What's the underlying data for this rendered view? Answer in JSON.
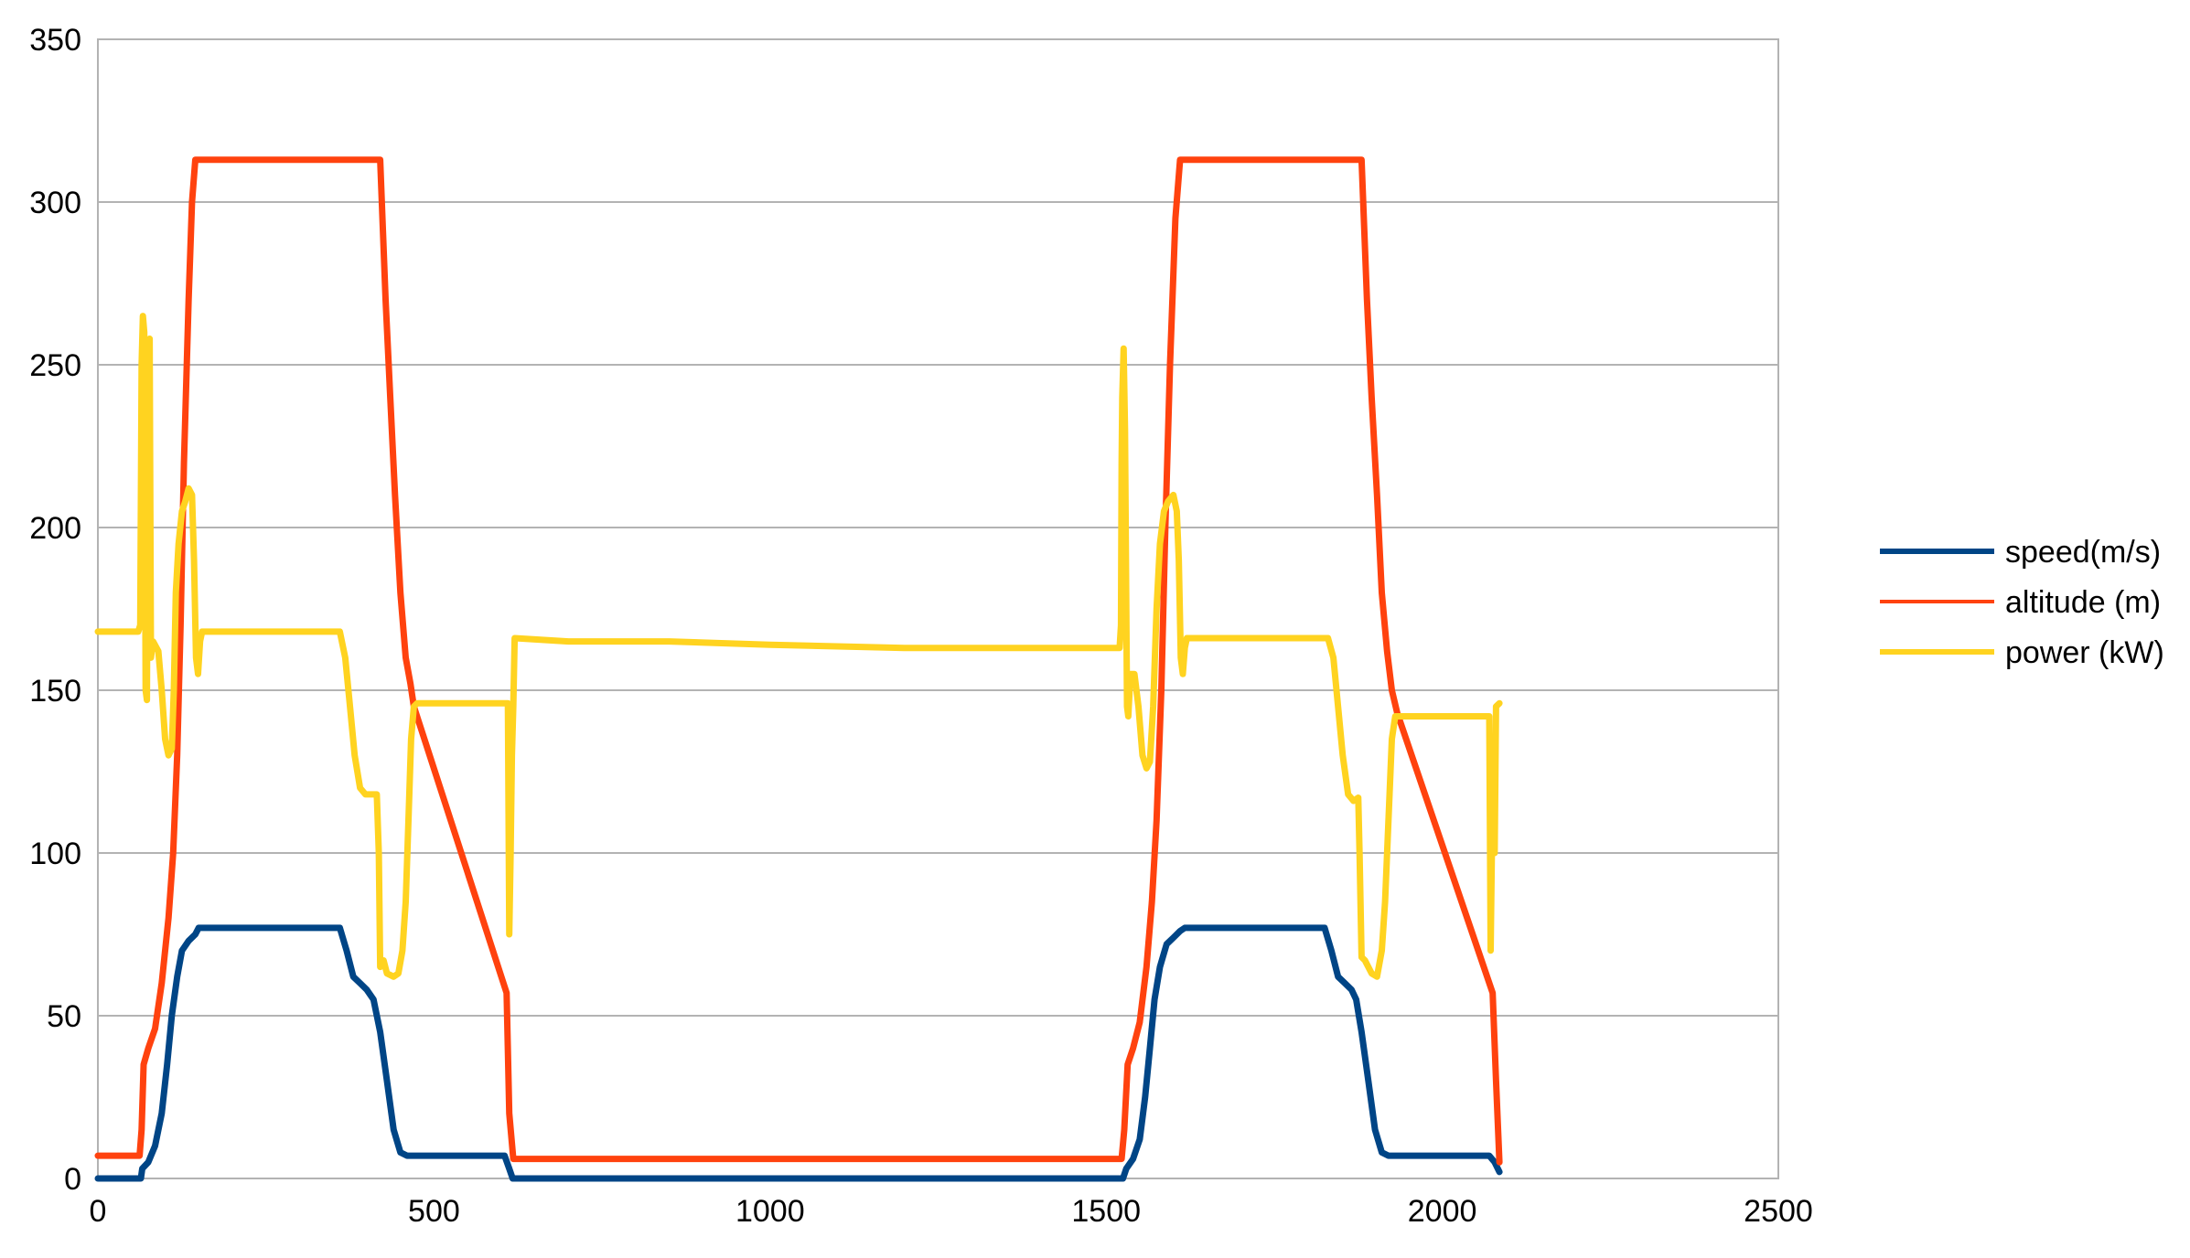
{
  "chart_data": {
    "type": "line",
    "xlim": [
      0,
      2500
    ],
    "ylim": [
      0,
      350
    ],
    "x_ticks": [
      "0",
      "500",
      "1000",
      "1500",
      "2000",
      "2500"
    ],
    "y_ticks": [
      "0",
      "50",
      "100",
      "150",
      "200",
      "250",
      "300",
      "350"
    ],
    "grid": true,
    "legend_position": "right",
    "series": [
      {
        "name": "speed(m/s)",
        "color": "#004586",
        "points": [
          [
            0,
            0
          ],
          [
            64,
            0
          ],
          [
            66,
            3
          ],
          [
            75,
            5
          ],
          [
            85,
            10
          ],
          [
            95,
            20
          ],
          [
            103,
            35
          ],
          [
            110,
            50
          ],
          [
            118,
            62
          ],
          [
            125,
            70
          ],
          [
            135,
            73
          ],
          [
            145,
            75
          ],
          [
            150,
            77
          ],
          [
            360,
            77
          ],
          [
            370,
            70
          ],
          [
            380,
            62
          ],
          [
            390,
            60
          ],
          [
            400,
            58
          ],
          [
            410,
            55
          ],
          [
            420,
            45
          ],
          [
            430,
            30
          ],
          [
            440,
            15
          ],
          [
            450,
            8
          ],
          [
            460,
            7
          ],
          [
            605,
            7
          ],
          [
            612,
            3
          ],
          [
            617,
            0
          ],
          [
            1525,
            0
          ],
          [
            1530,
            3
          ],
          [
            1540,
            6
          ],
          [
            1550,
            12
          ],
          [
            1558,
            25
          ],
          [
            1565,
            40
          ],
          [
            1572,
            55
          ],
          [
            1580,
            65
          ],
          [
            1590,
            72
          ],
          [
            1600,
            74
          ],
          [
            1610,
            76
          ],
          [
            1617,
            77
          ],
          [
            1825,
            77
          ],
          [
            1835,
            70
          ],
          [
            1845,
            62
          ],
          [
            1855,
            60
          ],
          [
            1865,
            58
          ],
          [
            1872,
            55
          ],
          [
            1880,
            45
          ],
          [
            1890,
            30
          ],
          [
            1900,
            15
          ],
          [
            1910,
            8
          ],
          [
            1920,
            7
          ],
          [
            2070,
            7
          ],
          [
            2078,
            5
          ],
          [
            2085,
            2
          ]
        ]
      },
      {
        "name": "altitude (m)",
        "color": "#ff420e",
        "points": [
          [
            0,
            7
          ],
          [
            62,
            7
          ],
          [
            65,
            15
          ],
          [
            68,
            35
          ],
          [
            75,
            40
          ],
          [
            85,
            46
          ],
          [
            95,
            60
          ],
          [
            105,
            80
          ],
          [
            112,
            100
          ],
          [
            118,
            130
          ],
          [
            123,
            170
          ],
          [
            128,
            220
          ],
          [
            135,
            270
          ],
          [
            140,
            300
          ],
          [
            145,
            313
          ],
          [
            420,
            313
          ],
          [
            428,
            270
          ],
          [
            435,
            240
          ],
          [
            442,
            210
          ],
          [
            450,
            180
          ],
          [
            458,
            160
          ],
          [
            465,
            152
          ],
          [
            470,
            145
          ],
          [
            608,
            57
          ],
          [
            612,
            20
          ],
          [
            618,
            6
          ],
          [
            1523,
            6
          ],
          [
            1527,
            15
          ],
          [
            1532,
            35
          ],
          [
            1540,
            40
          ],
          [
            1550,
            48
          ],
          [
            1560,
            65
          ],
          [
            1568,
            85
          ],
          [
            1575,
            110
          ],
          [
            1582,
            150
          ],
          [
            1588,
            200
          ],
          [
            1595,
            250
          ],
          [
            1603,
            295
          ],
          [
            1610,
            313
          ],
          [
            1880,
            313
          ],
          [
            1888,
            270
          ],
          [
            1895,
            240
          ],
          [
            1903,
            210
          ],
          [
            1910,
            180
          ],
          [
            1918,
            162
          ],
          [
            1925,
            150
          ],
          [
            1933,
            143
          ],
          [
            2075,
            57
          ],
          [
            2080,
            30
          ],
          [
            2085,
            5
          ]
        ]
      },
      {
        "name": "power (kW)",
        "color": "#ffd320",
        "points": [
          [
            0,
            168
          ],
          [
            60,
            168
          ],
          [
            63,
            170
          ],
          [
            65,
            250
          ],
          [
            67,
            265
          ],
          [
            69,
            260
          ],
          [
            71,
            150
          ],
          [
            73,
            147
          ],
          [
            75,
            255
          ],
          [
            77,
            258
          ],
          [
            79,
            160
          ],
          [
            82,
            165
          ],
          [
            90,
            162
          ],
          [
            95,
            150
          ],
          [
            100,
            135
          ],
          [
            105,
            130
          ],
          [
            110,
            132
          ],
          [
            113,
            150
          ],
          [
            116,
            180
          ],
          [
            120,
            195
          ],
          [
            125,
            205
          ],
          [
            130,
            208
          ],
          [
            135,
            212
          ],
          [
            140,
            210
          ],
          [
            143,
            190
          ],
          [
            146,
            160
          ],
          [
            149,
            155
          ],
          [
            152,
            165
          ],
          [
            155,
            168
          ],
          [
            360,
            168
          ],
          [
            368,
            160
          ],
          [
            375,
            145
          ],
          [
            382,
            130
          ],
          [
            390,
            120
          ],
          [
            398,
            118
          ],
          [
            415,
            118
          ],
          [
            418,
            100
          ],
          [
            420,
            65
          ],
          [
            425,
            67
          ],
          [
            430,
            63
          ],
          [
            440,
            62
          ],
          [
            447,
            63
          ],
          [
            453,
            70
          ],
          [
            458,
            85
          ],
          [
            462,
            110
          ],
          [
            466,
            135
          ],
          [
            470,
            145
          ],
          [
            475,
            146
          ],
          [
            610,
            146
          ],
          [
            612,
            75
          ],
          [
            614,
            100
          ],
          [
            616,
            130
          ],
          [
            618,
            145
          ],
          [
            620,
            166
          ],
          [
            700,
            165
          ],
          [
            850,
            165
          ],
          [
            1000,
            164
          ],
          [
            1200,
            163
          ],
          [
            1400,
            163
          ],
          [
            1520,
            163
          ],
          [
            1522,
            170
          ],
          [
            1523,
            220
          ],
          [
            1524,
            240
          ],
          [
            1526,
            255
          ],
          [
            1528,
            230
          ],
          [
            1531,
            145
          ],
          [
            1533,
            142
          ],
          [
            1536,
            155
          ],
          [
            1542,
            155
          ],
          [
            1548,
            145
          ],
          [
            1554,
            130
          ],
          [
            1560,
            126
          ],
          [
            1565,
            128
          ],
          [
            1570,
            145
          ],
          [
            1575,
            175
          ],
          [
            1580,
            195
          ],
          [
            1586,
            205
          ],
          [
            1592,
            208
          ],
          [
            1600,
            210
          ],
          [
            1605,
            205
          ],
          [
            1608,
            190
          ],
          [
            1611,
            160
          ],
          [
            1614,
            155
          ],
          [
            1617,
            163
          ],
          [
            1620,
            166
          ],
          [
            1830,
            166
          ],
          [
            1838,
            160
          ],
          [
            1845,
            145
          ],
          [
            1852,
            130
          ],
          [
            1860,
            118
          ],
          [
            1868,
            116
          ],
          [
            1875,
            117
          ],
          [
            1877,
            100
          ],
          [
            1880,
            68
          ],
          [
            1885,
            67
          ],
          [
            1895,
            63
          ],
          [
            1903,
            62
          ],
          [
            1910,
            70
          ],
          [
            1915,
            85
          ],
          [
            1920,
            110
          ],
          [
            1925,
            135
          ],
          [
            1930,
            142
          ],
          [
            2070,
            142
          ],
          [
            2072,
            70
          ],
          [
            2075,
            120
          ],
          [
            2078,
            100
          ],
          [
            2080,
            145
          ],
          [
            2085,
            146
          ]
        ]
      }
    ]
  }
}
